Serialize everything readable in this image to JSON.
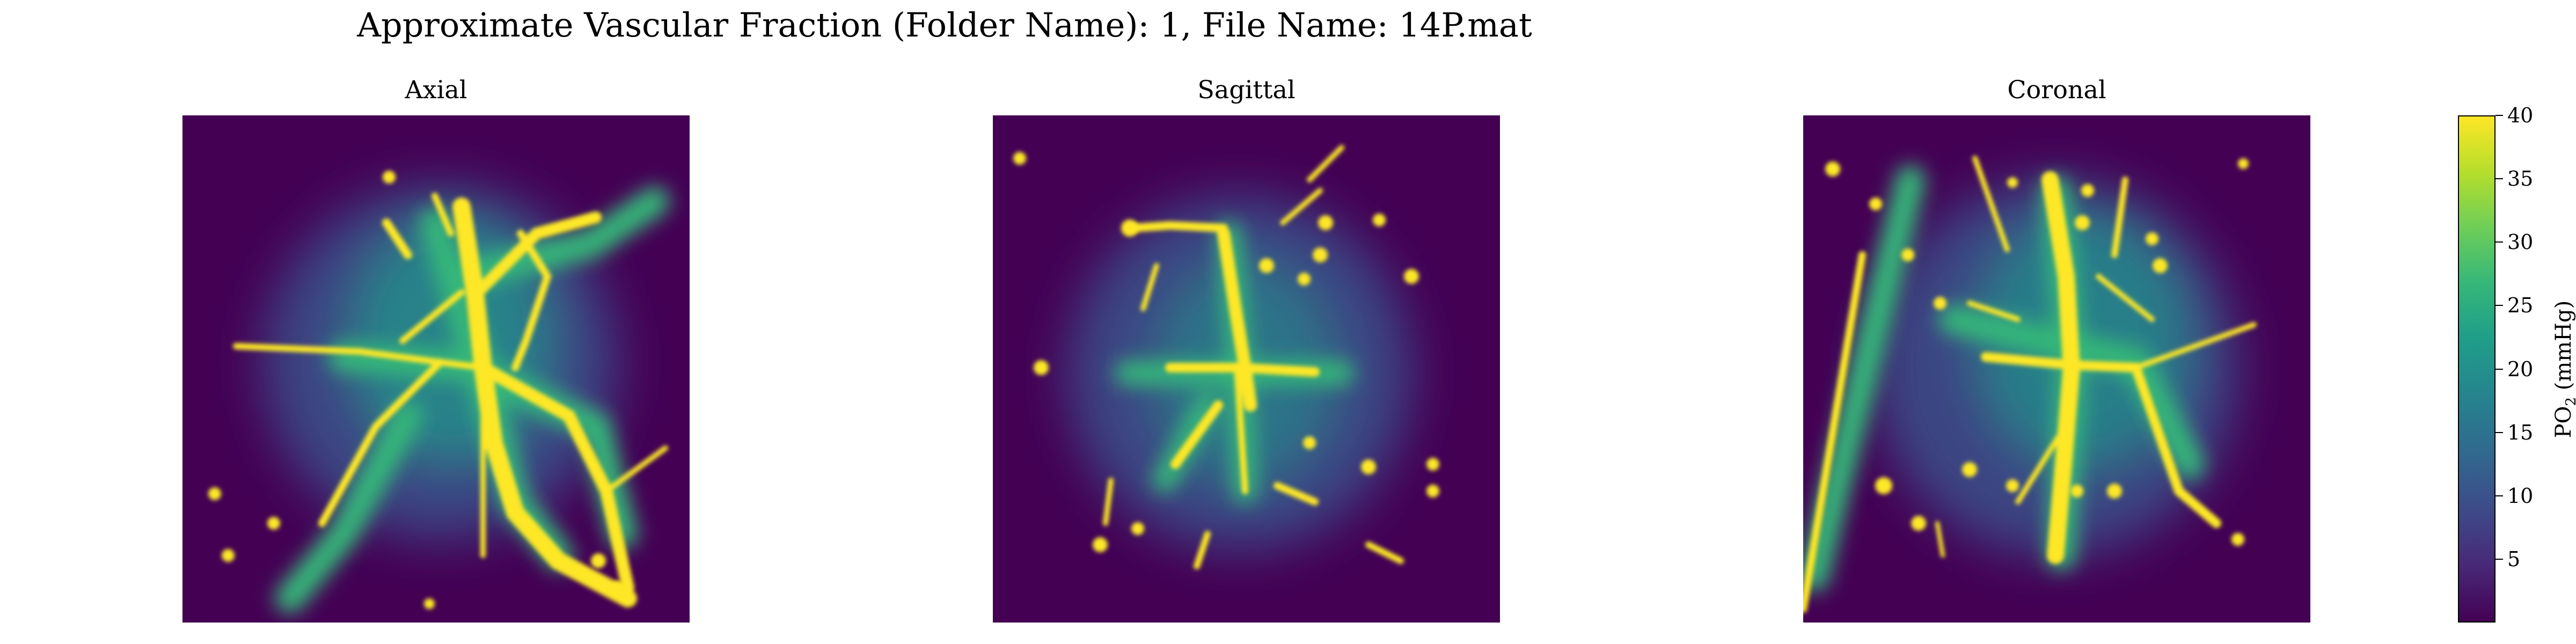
{
  "title": "Approximate Vascular Fraction (Folder Name): 1, File Name: 14P.mat",
  "panels": [
    {
      "title": "Axial"
    },
    {
      "title": "Sagittal"
    },
    {
      "title": "Coronal"
    }
  ],
  "colorbar": {
    "label_main": "PO",
    "label_sub": "2",
    "label_unit": "(mmHg)",
    "colormap": "viridis",
    "range": [
      0,
      40
    ],
    "ticks": [
      "5",
      "10",
      "15",
      "20",
      "25",
      "30",
      "35",
      "40"
    ]
  },
  "chart_data": [
    {
      "type": "heatmap",
      "title": "Axial",
      "colormap": "viridis",
      "vmin": 0,
      "vmax": 40,
      "xlabel": "",
      "ylabel": "",
      "axes": "off"
    },
    {
      "type": "heatmap",
      "title": "Sagittal",
      "colormap": "viridis",
      "vmin": 0,
      "vmax": 40,
      "xlabel": "",
      "ylabel": "",
      "axes": "off"
    },
    {
      "type": "heatmap",
      "title": "Coronal",
      "colormap": "viridis",
      "vmin": 0,
      "vmax": 40,
      "xlabel": "",
      "ylabel": "",
      "axes": "off"
    }
  ]
}
